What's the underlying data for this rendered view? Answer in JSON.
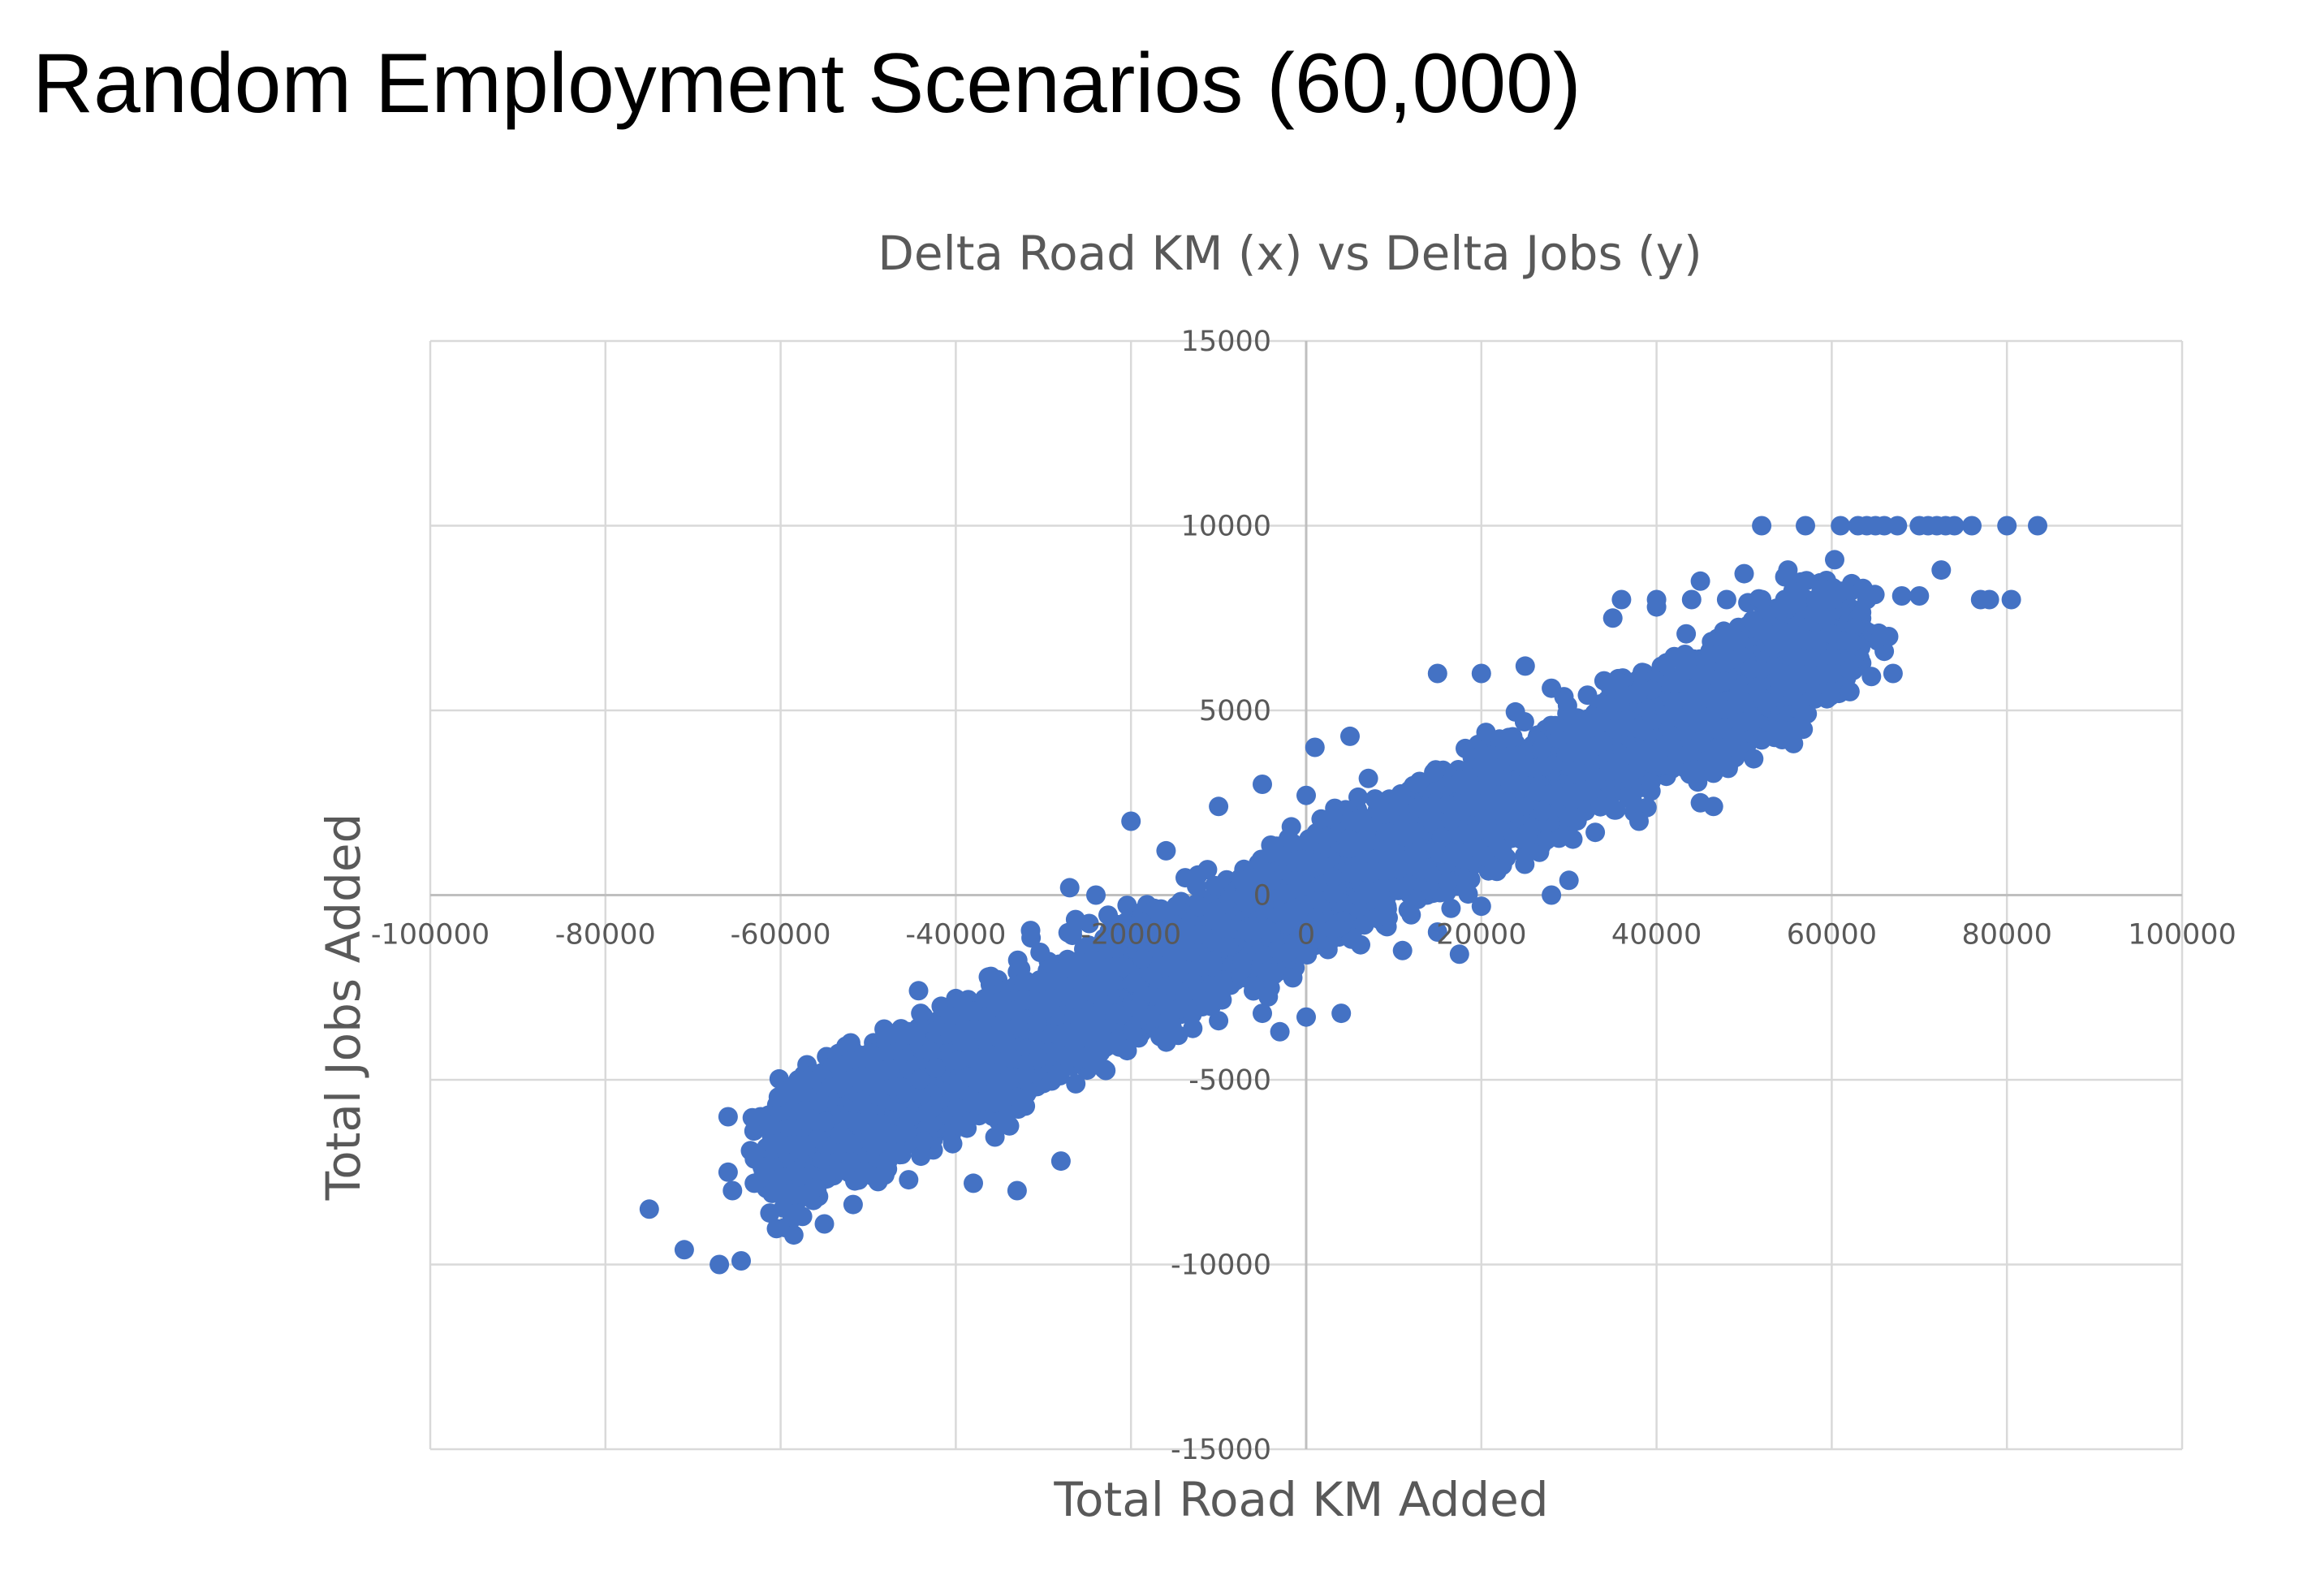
{
  "slide": {
    "title": "Random Employment Scenarios (60,000)"
  },
  "chart_data": {
    "type": "scatter",
    "title": "Delta Road KM (x) vs Delta Jobs (y)",
    "xlabel": "Total Road KM Added",
    "ylabel": "Total Jobs Added",
    "xlim": [
      -100000,
      100000
    ],
    "ylim": [
      -15000,
      15000
    ],
    "x_ticks": [
      -100000,
      -80000,
      -60000,
      -40000,
      -20000,
      0,
      20000,
      40000,
      60000,
      80000,
      100000
    ],
    "y_ticks": [
      -15000,
      -10000,
      -5000,
      0,
      5000,
      10000,
      15000
    ],
    "grid": true,
    "legend": "none",
    "marker_color": "#4472C4",
    "series": [
      {
        "points_count_label": "60,000",
        "trend": {
          "slope_jobs_per_km": 0.115,
          "spread_jobs": 1100,
          "x_range": [
            -60000,
            62000
          ],
          "y_cap": 10000
        },
        "points": [
          [
            -75000,
            -8500
          ],
          [
            -71000,
            -9600
          ],
          [
            -67000,
            -10000
          ],
          [
            -64500,
            -9900
          ],
          [
            -66000,
            -6000
          ],
          [
            -66000,
            -7500
          ],
          [
            -65500,
            -8000
          ],
          [
            -63000,
            -7800
          ],
          [
            -59500,
            -9000
          ],
          [
            -58500,
            -9200
          ],
          [
            -57500,
            -8700
          ],
          [
            -55000,
            -8900
          ],
          [
            -58000,
            -5000
          ],
          [
            -55500,
            -5600
          ],
          [
            -53000,
            -5000
          ],
          [
            -52000,
            -4000
          ],
          [
            -48000,
            -3800
          ],
          [
            -44000,
            -3200
          ],
          [
            -40000,
            -2800
          ],
          [
            -36000,
            -2200
          ],
          [
            -33000,
            -8000
          ],
          [
            -28000,
            -7200
          ],
          [
            -38000,
            -7800
          ],
          [
            -27000,
            200
          ],
          [
            -24000,
            0
          ],
          [
            -20000,
            2000
          ],
          [
            -16000,
            1200
          ],
          [
            -10000,
            2400
          ],
          [
            -5000,
            3000
          ],
          [
            0,
            2700
          ],
          [
            1000,
            4000
          ],
          [
            5000,
            4300
          ],
          [
            -10000,
            -3400
          ],
          [
            -5000,
            -3200
          ],
          [
            -3000,
            -3700
          ],
          [
            0,
            -3300
          ],
          [
            4000,
            -3200
          ],
          [
            11000,
            -1500
          ],
          [
            15000,
            -1000
          ],
          [
            17500,
            -1600
          ],
          [
            20000,
            -300
          ],
          [
            15000,
            6000
          ],
          [
            20000,
            6000
          ],
          [
            25000,
            6200
          ],
          [
            28000,
            5600
          ],
          [
            34000,
            5800
          ],
          [
            30000,
            400
          ],
          [
            28000,
            0
          ],
          [
            33000,
            1700
          ],
          [
            38000,
            2000
          ],
          [
            45000,
            2500
          ],
          [
            46500,
            2400
          ],
          [
            46500,
            3300
          ],
          [
            52000,
            4200
          ],
          [
            55000,
            4400
          ],
          [
            35000,
            7500
          ],
          [
            40000,
            7800
          ],
          [
            45000,
            8500
          ],
          [
            50000,
            8700
          ],
          [
            55000,
            8800
          ],
          [
            36000,
            8000
          ],
          [
            40000,
            8000
          ],
          [
            44000,
            8000
          ],
          [
            48000,
            8000
          ],
          [
            52000,
            8000
          ],
          [
            56000,
            8000
          ],
          [
            60000,
            8000
          ],
          [
            64000,
            8000
          ],
          [
            68000,
            8100
          ],
          [
            70000,
            8100
          ],
          [
            72500,
            8800
          ],
          [
            77000,
            8000
          ],
          [
            78000,
            8000
          ],
          [
            80500,
            8000
          ],
          [
            52000,
            10000
          ],
          [
            57000,
            10000
          ],
          [
            61000,
            10000
          ],
          [
            63000,
            10000
          ],
          [
            64000,
            10000
          ],
          [
            65000,
            10000
          ],
          [
            66000,
            10000
          ],
          [
            67500,
            10000
          ],
          [
            70000,
            10000
          ],
          [
            71000,
            10000
          ],
          [
            72000,
            10000
          ],
          [
            73000,
            10000
          ],
          [
            74000,
            10000
          ],
          [
            76000,
            10000
          ],
          [
            80000,
            10000
          ],
          [
            83500,
            10000
          ],
          [
            60000,
            6000
          ],
          [
            62000,
            6100
          ],
          [
            66000,
            6600
          ],
          [
            67000,
            6000
          ],
          [
            66500,
            7000
          ]
        ]
      }
    ]
  }
}
